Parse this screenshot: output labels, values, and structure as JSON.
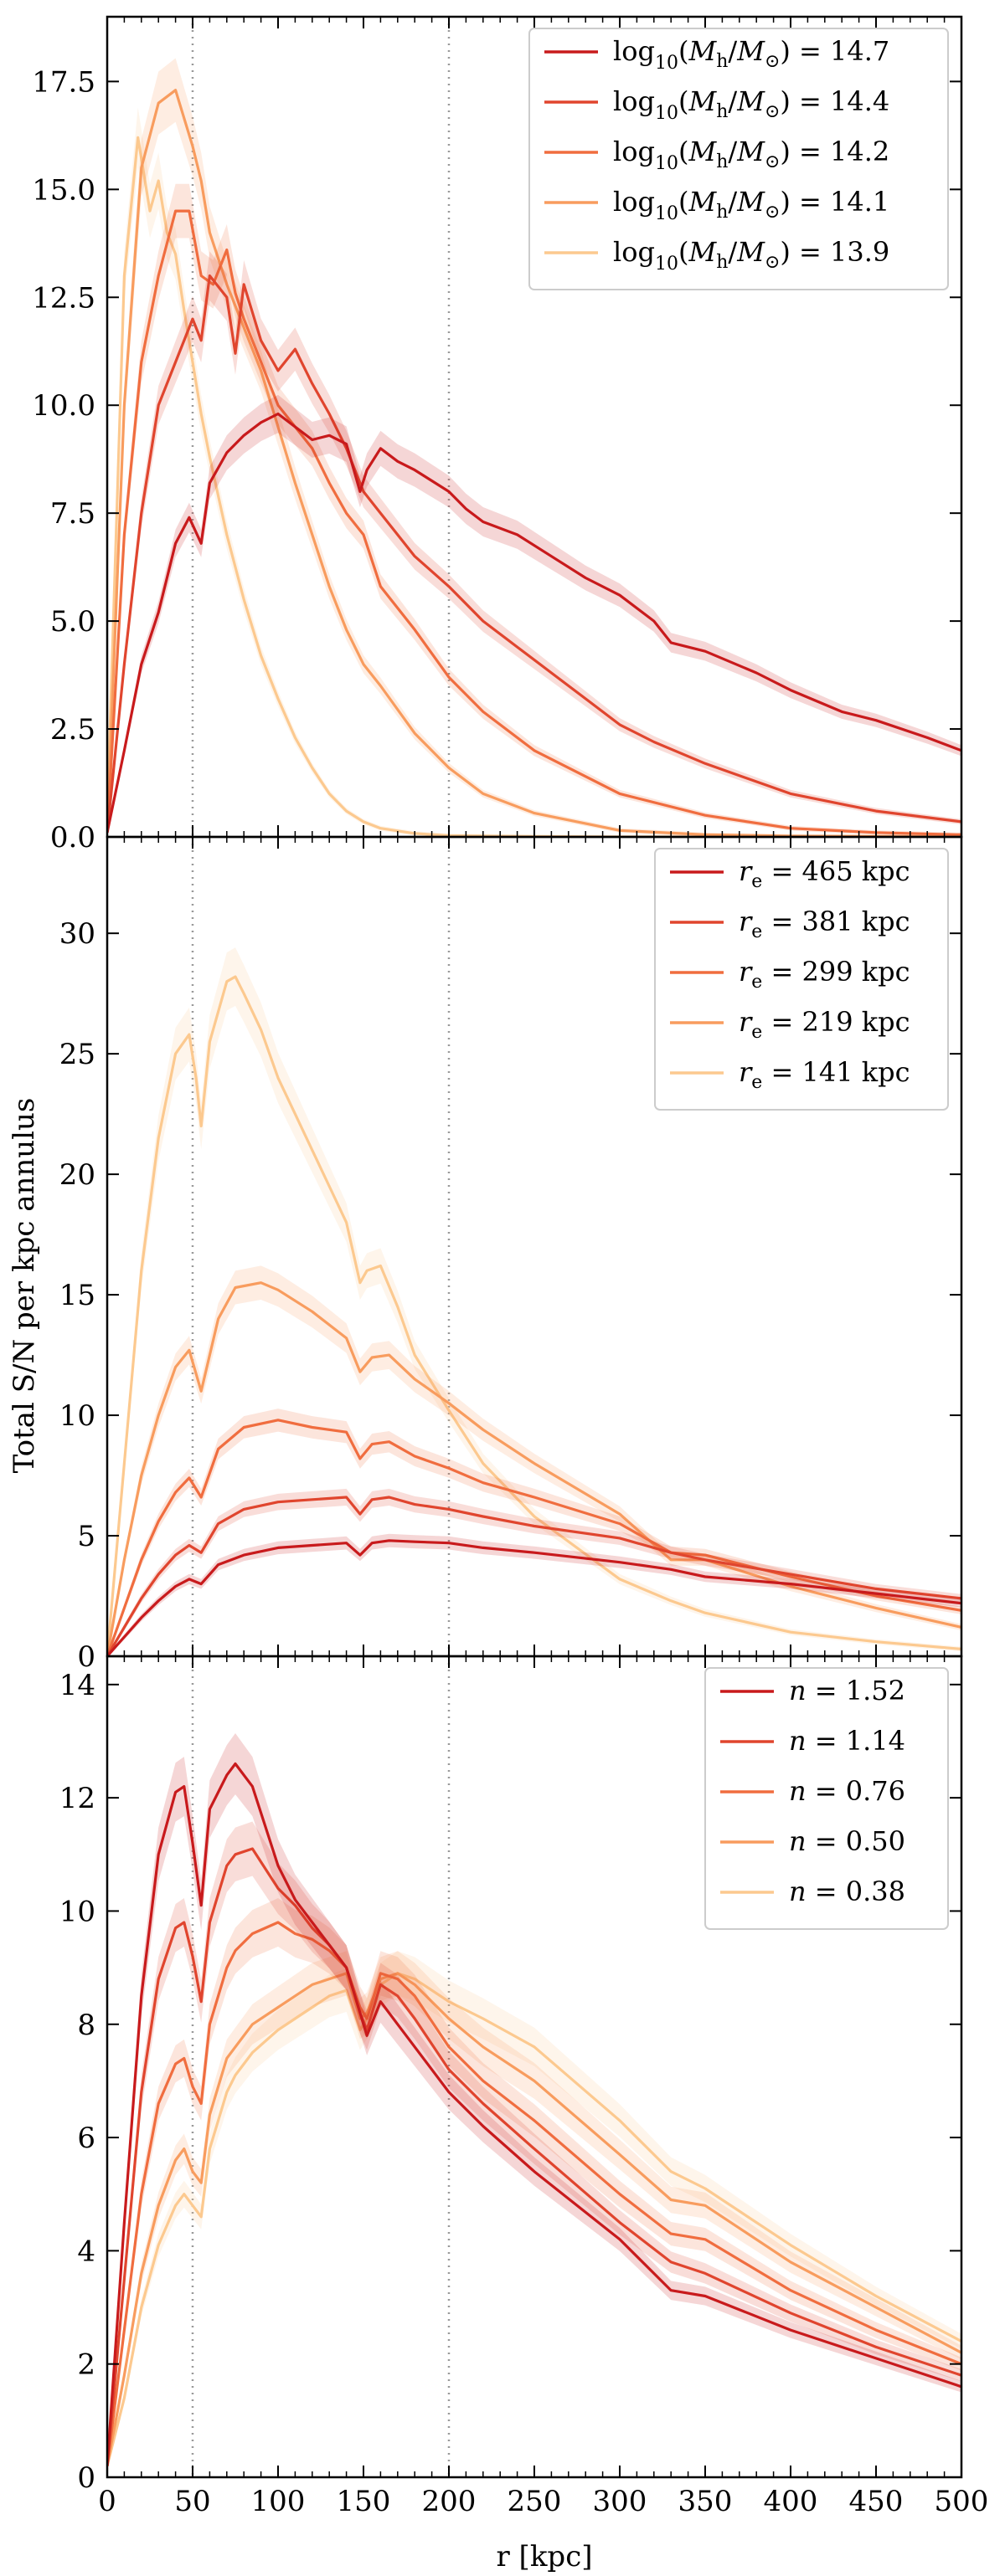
{
  "figure": {
    "ylabel": "Total S/N per kpc annulus",
    "xlabel": "r [kpc]"
  },
  "chart_data": [
    {
      "type": "line",
      "panel": "top",
      "xlim": [
        0,
        500
      ],
      "ylim": [
        0,
        19
      ],
      "xticks": [
        0,
        50,
        100,
        150,
        200,
        250,
        300,
        350,
        400,
        450,
        500
      ],
      "yticks": [
        0,
        2.5,
        5,
        7.5,
        10,
        12.5,
        15,
        17.5
      ],
      "ytick_labels": [
        "0.0",
        "2.5",
        "5.0",
        "7.5",
        "10.0",
        "12.5",
        "15.0",
        "17.5"
      ],
      "vlines": [
        50,
        200
      ],
      "legend_position": "top-right",
      "series": [
        {
          "name": "log10(Mh/M⊙) = 14.7",
          "color": "#c81a1c",
          "x": [
            0,
            10,
            20,
            30,
            40,
            48,
            55,
            60,
            70,
            80,
            90,
            100,
            110,
            120,
            130,
            140,
            148,
            152,
            160,
            170,
            180,
            200,
            210,
            220,
            240,
            260,
            280,
            300,
            320,
            330,
            350,
            380,
            400,
            430,
            450,
            480,
            500
          ],
          "y": [
            0.1,
            2.0,
            4.0,
            5.2,
            6.8,
            7.4,
            6.8,
            8.2,
            8.9,
            9.3,
            9.6,
            9.8,
            9.5,
            9.2,
            9.3,
            9.1,
            8.0,
            8.5,
            9.0,
            8.7,
            8.5,
            8.0,
            7.6,
            7.3,
            7.0,
            6.5,
            6.0,
            5.6,
            5.0,
            4.5,
            4.3,
            3.8,
            3.4,
            2.9,
            2.7,
            2.3,
            2.0
          ]
        },
        {
          "name": "log10(Mh/M⊙) = 14.4",
          "color": "#e0452e",
          "x": [
            0,
            10,
            20,
            30,
            40,
            50,
            55,
            60,
            70,
            75,
            80,
            90,
            100,
            110,
            120,
            130,
            140,
            150,
            160,
            180,
            200,
            220,
            240,
            260,
            280,
            300,
            320,
            350,
            400,
            450,
            500
          ],
          "y": [
            0.1,
            4.0,
            7.5,
            10.0,
            11.0,
            12.0,
            11.5,
            13.0,
            12.5,
            11.2,
            12.8,
            11.5,
            10.8,
            11.3,
            10.5,
            9.8,
            9.0,
            8.0,
            7.5,
            6.5,
            5.8,
            5.0,
            4.4,
            3.8,
            3.2,
            2.6,
            2.2,
            1.7,
            1.0,
            0.6,
            0.35
          ]
        },
        {
          "name": "log10(Mh/M⊙) = 14.2",
          "color": "#f06d3f",
          "x": [
            0,
            10,
            20,
            30,
            40,
            48,
            55,
            62,
            70,
            75,
            80,
            90,
            100,
            110,
            120,
            130,
            140,
            150,
            160,
            180,
            200,
            220,
            250,
            300,
            350,
            400,
            450,
            500
          ],
          "y": [
            0.1,
            7.0,
            11.0,
            13.0,
            14.5,
            14.5,
            13.0,
            12.8,
            13.6,
            12.6,
            12.0,
            11.0,
            10.0,
            9.5,
            9.0,
            8.2,
            7.5,
            7.0,
            5.8,
            4.8,
            3.7,
            2.9,
            2.0,
            1.0,
            0.5,
            0.2,
            0.1,
            0.05
          ]
        },
        {
          "name": "log10(Mh/M⊙) = 14.1",
          "color": "#f89c5e",
          "x": [
            0,
            10,
            20,
            30,
            40,
            50,
            55,
            60,
            70,
            80,
            90,
            100,
            110,
            120,
            130,
            140,
            150,
            160,
            180,
            200,
            220,
            250,
            300,
            350,
            400,
            450,
            500
          ],
          "y": [
            0.2,
            10.0,
            15.5,
            17.0,
            17.3,
            16.0,
            15.2,
            14.0,
            12.8,
            11.8,
            10.8,
            9.5,
            8.2,
            7.0,
            5.8,
            4.8,
            4.0,
            3.5,
            2.4,
            1.6,
            1.0,
            0.55,
            0.15,
            0.05,
            0.02,
            0.01,
            0.01
          ]
        },
        {
          "name": "log10(Mh/M⊙) = 13.9",
          "color": "#fcc98f",
          "x": [
            0,
            10,
            18,
            25,
            30,
            35,
            40,
            45,
            50,
            55,
            60,
            70,
            80,
            90,
            100,
            110,
            120,
            130,
            140,
            150,
            160,
            180,
            200,
            250,
            300,
            400,
            500
          ],
          "y": [
            0.5,
            13.0,
            16.2,
            14.5,
            15.2,
            14.0,
            13.5,
            12.2,
            11.0,
            9.8,
            8.8,
            7.0,
            5.5,
            4.2,
            3.2,
            2.3,
            1.6,
            1.0,
            0.6,
            0.35,
            0.2,
            0.08,
            0.03,
            0.01,
            0.0,
            0.0,
            0.0
          ]
        }
      ]
    },
    {
      "type": "line",
      "panel": "middle",
      "xlim": [
        0,
        500
      ],
      "ylim": [
        0,
        34
      ],
      "xticks": [
        0,
        50,
        100,
        150,
        200,
        250,
        300,
        350,
        400,
        450,
        500
      ],
      "yticks": [
        0,
        5,
        10,
        15,
        20,
        25,
        30
      ],
      "ytick_labels": [
        "0",
        "5",
        "10",
        "15",
        "20",
        "25",
        "30"
      ],
      "vlines": [
        50,
        200
      ],
      "legend_position": "top-right",
      "series": [
        {
          "name": "re = 465 kpc",
          "color": "#c81a1c",
          "x": [
            0,
            10,
            20,
            30,
            40,
            48,
            55,
            65,
            80,
            100,
            120,
            140,
            148,
            155,
            165,
            180,
            200,
            220,
            250,
            300,
            330,
            350,
            400,
            450,
            500
          ],
          "y": [
            0,
            0.8,
            1.6,
            2.3,
            2.9,
            3.2,
            3.0,
            3.8,
            4.2,
            4.5,
            4.6,
            4.7,
            4.2,
            4.7,
            4.8,
            4.75,
            4.7,
            4.5,
            4.3,
            3.9,
            3.6,
            3.3,
            3.0,
            2.6,
            2.2
          ]
        },
        {
          "name": "re = 381 kpc",
          "color": "#e0452e",
          "x": [
            0,
            10,
            20,
            30,
            40,
            48,
            55,
            65,
            80,
            100,
            120,
            140,
            148,
            155,
            165,
            180,
            200,
            220,
            250,
            300,
            330,
            350,
            400,
            450,
            500
          ],
          "y": [
            0,
            1.2,
            2.4,
            3.4,
            4.2,
            4.6,
            4.3,
            5.5,
            6.1,
            6.4,
            6.5,
            6.6,
            5.9,
            6.5,
            6.6,
            6.3,
            6.1,
            5.8,
            5.4,
            4.9,
            4.3,
            4.0,
            3.4,
            2.8,
            2.4
          ]
        },
        {
          "name": "re = 299 kpc",
          "color": "#f06d3f",
          "x": [
            0,
            10,
            20,
            30,
            40,
            48,
            55,
            65,
            80,
            100,
            120,
            140,
            148,
            155,
            165,
            180,
            200,
            220,
            250,
            300,
            330,
            350,
            400,
            450,
            500
          ],
          "y": [
            0,
            2.0,
            4.0,
            5.6,
            6.8,
            7.4,
            6.6,
            8.6,
            9.5,
            9.8,
            9.5,
            9.3,
            8.2,
            8.8,
            8.9,
            8.3,
            7.8,
            7.2,
            6.6,
            5.5,
            4.3,
            4.2,
            3.3,
            2.5,
            1.9
          ]
        },
        {
          "name": "re = 219 kpc",
          "color": "#f89c5e",
          "x": [
            0,
            10,
            20,
            30,
            40,
            48,
            55,
            65,
            75,
            90,
            100,
            120,
            140,
            148,
            155,
            165,
            180,
            200,
            220,
            250,
            300,
            330,
            350,
            400,
            450,
            500
          ],
          "y": [
            0,
            4.0,
            7.5,
            10.0,
            12.0,
            12.7,
            11.0,
            14.0,
            15.3,
            15.5,
            15.2,
            14.3,
            13.2,
            11.8,
            12.4,
            12.5,
            11.5,
            10.5,
            9.4,
            8.0,
            5.9,
            4.0,
            4.0,
            2.9,
            2.0,
            1.2
          ]
        },
        {
          "name": "re = 141 kpc",
          "color": "#fcc98f",
          "x": [
            0,
            10,
            20,
            30,
            40,
            48,
            52,
            55,
            60,
            70,
            75,
            80,
            90,
            100,
            110,
            120,
            130,
            140,
            148,
            152,
            160,
            170,
            180,
            200,
            220,
            250,
            300,
            330,
            350,
            400,
            450,
            500
          ],
          "y": [
            0,
            8.0,
            16.0,
            21.5,
            25.0,
            25.8,
            24.0,
            22.0,
            25.5,
            28.0,
            28.2,
            27.5,
            26.0,
            24.0,
            22.5,
            21.0,
            19.5,
            18.0,
            15.5,
            16.0,
            16.2,
            14.5,
            12.5,
            10.2,
            8.0,
            5.8,
            3.2,
            2.3,
            1.8,
            1.0,
            0.6,
            0.3
          ]
        }
      ]
    },
    {
      "type": "line",
      "panel": "bottom",
      "xlim": [
        0,
        500
      ],
      "ylim": [
        0,
        14.5
      ],
      "xticks": [
        0,
        50,
        100,
        150,
        200,
        250,
        300,
        350,
        400,
        450,
        500
      ],
      "xtick_labels": [
        "0",
        "50",
        "100",
        "150",
        "200",
        "250",
        "300",
        "350",
        "400",
        "450",
        "500"
      ],
      "yticks": [
        0,
        2,
        4,
        6,
        8,
        10,
        12,
        14
      ],
      "ytick_labels": [
        "0",
        "2",
        "4",
        "6",
        "8",
        "10",
        "12",
        "14"
      ],
      "vlines": [
        50,
        200
      ],
      "legend_position": "top-right",
      "series": [
        {
          "name": "n = 1.52",
          "color": "#c81a1c",
          "x": [
            0,
            10,
            20,
            30,
            40,
            45,
            50,
            55,
            60,
            70,
            75,
            85,
            100,
            110,
            120,
            130,
            140,
            148,
            152,
            160,
            170,
            180,
            200,
            220,
            250,
            300,
            330,
            350,
            400,
            450,
            500
          ],
          "y": [
            0.2,
            4.5,
            8.5,
            11.0,
            12.1,
            12.2,
            11.2,
            10.1,
            11.8,
            12.4,
            12.6,
            12.2,
            10.8,
            10.2,
            9.8,
            9.4,
            9.0,
            8.2,
            7.8,
            8.4,
            8.0,
            7.6,
            6.8,
            6.2,
            5.4,
            4.2,
            3.3,
            3.2,
            2.6,
            2.1,
            1.6
          ]
        },
        {
          "name": "n = 1.14",
          "color": "#e0452e",
          "x": [
            0,
            10,
            20,
            30,
            40,
            45,
            50,
            55,
            60,
            70,
            75,
            85,
            100,
            110,
            120,
            130,
            140,
            148,
            152,
            160,
            170,
            180,
            200,
            220,
            250,
            300,
            330,
            350,
            400,
            450,
            500
          ],
          "y": [
            0.2,
            3.5,
            6.8,
            8.8,
            9.7,
            9.8,
            9.2,
            8.4,
            9.8,
            10.8,
            11.0,
            11.1,
            10.4,
            10.1,
            9.7,
            9.4,
            9.0,
            8.2,
            7.9,
            8.7,
            8.5,
            8.1,
            7.2,
            6.6,
            5.8,
            4.5,
            3.8,
            3.6,
            2.9,
            2.3,
            1.8
          ]
        },
        {
          "name": "n = 0.76",
          "color": "#f06d3f",
          "x": [
            0,
            10,
            20,
            30,
            40,
            45,
            50,
            55,
            60,
            70,
            75,
            85,
            100,
            110,
            120,
            130,
            140,
            148,
            152,
            160,
            170,
            180,
            200,
            220,
            250,
            300,
            330,
            350,
            400,
            450,
            500
          ],
          "y": [
            0.2,
            2.6,
            5.0,
            6.6,
            7.3,
            7.4,
            6.9,
            6.6,
            8.0,
            9.0,
            9.3,
            9.6,
            9.8,
            9.6,
            9.5,
            9.3,
            9.0,
            8.3,
            8.1,
            8.9,
            8.8,
            8.5,
            7.6,
            7.0,
            6.3,
            5.0,
            4.3,
            4.2,
            3.3,
            2.6,
            2.0
          ]
        },
        {
          "name": "n = 0.50",
          "color": "#f89c5e",
          "x": [
            0,
            10,
            20,
            30,
            40,
            45,
            50,
            55,
            60,
            70,
            75,
            85,
            100,
            110,
            120,
            130,
            140,
            148,
            152,
            160,
            170,
            180,
            200,
            220,
            250,
            300,
            330,
            350,
            400,
            450,
            500
          ],
          "y": [
            0.2,
            1.8,
            3.6,
            4.8,
            5.6,
            5.8,
            5.4,
            5.2,
            6.4,
            7.4,
            7.6,
            8.0,
            8.3,
            8.5,
            8.7,
            8.8,
            8.9,
            8.1,
            8.2,
            8.8,
            8.9,
            8.7,
            8.1,
            7.6,
            7.0,
            5.7,
            4.9,
            4.8,
            3.8,
            3.0,
            2.2
          ]
        },
        {
          "name": "n = 0.38",
          "color": "#fcc98f",
          "x": [
            0,
            10,
            20,
            30,
            40,
            45,
            50,
            55,
            60,
            70,
            75,
            85,
            100,
            110,
            120,
            130,
            140,
            148,
            152,
            160,
            170,
            180,
            200,
            220,
            250,
            300,
            330,
            350,
            400,
            450,
            500
          ],
          "y": [
            0.2,
            1.4,
            3.0,
            4.1,
            4.8,
            5.0,
            4.8,
            4.6,
            5.8,
            6.8,
            7.1,
            7.5,
            7.9,
            8.1,
            8.3,
            8.5,
            8.6,
            7.9,
            8.1,
            8.7,
            8.9,
            8.8,
            8.4,
            8.1,
            7.6,
            6.3,
            5.4,
            5.1,
            4.1,
            3.2,
            2.4
          ]
        }
      ]
    }
  ]
}
